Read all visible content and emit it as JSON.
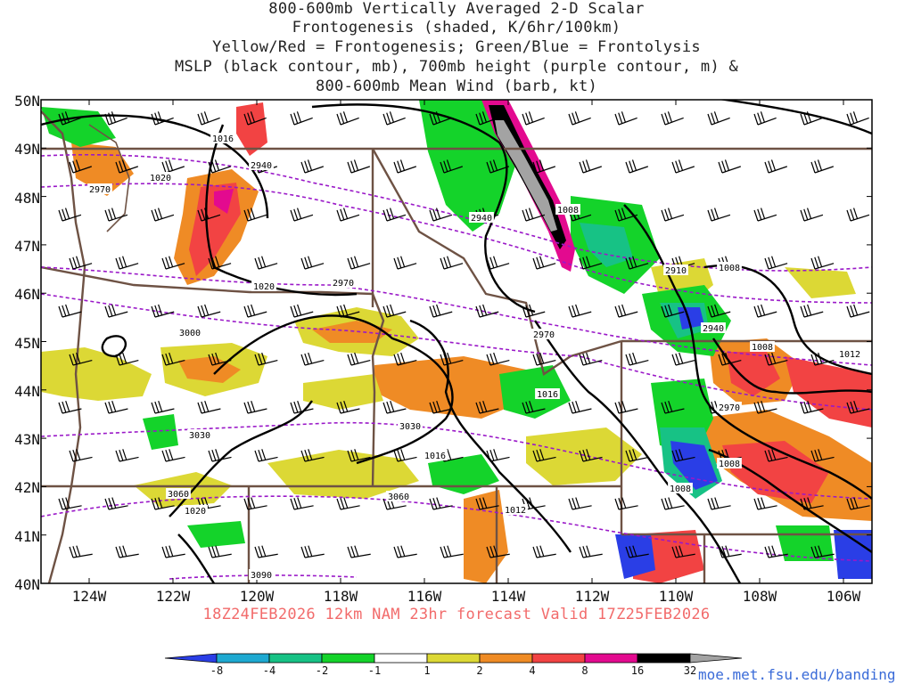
{
  "title": {
    "line1": "800-600mb Vertically Averaged 2-D Scalar",
    "line2": "Frontogenesis (shaded, K/6hr/100km)",
    "line3": "Yellow/Red = Frontogenesis;  Green/Blue = Frontolysis",
    "line4": "MSLP (black contour, mb), 700mb height (purple contour, m) &",
    "line5": "800-600mb Mean Wind (barb, kt)"
  },
  "valid_line": "18Z24FEB2026 12km NAM 23hr forecast Valid 17Z25FEB2026",
  "credit": "moe.met.fsu.edu/banding",
  "axes": {
    "lat_labels": [
      "50N",
      "49N",
      "48N",
      "47N",
      "46N",
      "45N",
      "44N",
      "43N",
      "42N",
      "41N",
      "40N"
    ],
    "lon_labels": [
      "124W",
      "122W",
      "120W",
      "118W",
      "116W",
      "114W",
      "112W",
      "110W",
      "108W",
      "106W"
    ]
  },
  "colorbar": {
    "labels": [
      "-8",
      "-4",
      "-2",
      "-1",
      "1",
      "2",
      "4",
      "8",
      "16",
      "32"
    ],
    "colors": [
      "#2a3ee6",
      "#1ea9d1",
      "#17c285",
      "#14d32a",
      "#ffffff",
      "#dcd835",
      "#ef8b25",
      "#f24343",
      "#e30a8f",
      "#000000",
      "#a3a3a3"
    ]
  },
  "mslp_labels": [
    "1016",
    "1020",
    "1020",
    "1008",
    "1008",
    "1008",
    "1012",
    "1016",
    "1016",
    "1012",
    "1008",
    "1008",
    "1020"
  ],
  "height_labels": [
    "2940",
    "2970",
    "2940",
    "2970",
    "2910",
    "2940",
    "2970",
    "3000",
    "2970",
    "3030",
    "3030",
    "3060",
    "3060",
    "3090"
  ],
  "colors": {
    "mslp_contour": "#000000",
    "height_contour": "#9a18c8",
    "state_borders": "#6e5244",
    "frontogenesis_yellow": "#dcd835",
    "frontogenesis_orange": "#ef8b25",
    "frontogenesis_red": "#f24343",
    "frontogenesis_magenta": "#e30a8f",
    "frontolysis_green": "#14d32a",
    "frontolysis_teal": "#17c285",
    "frontolysis_blue": "#2a3ee6"
  }
}
